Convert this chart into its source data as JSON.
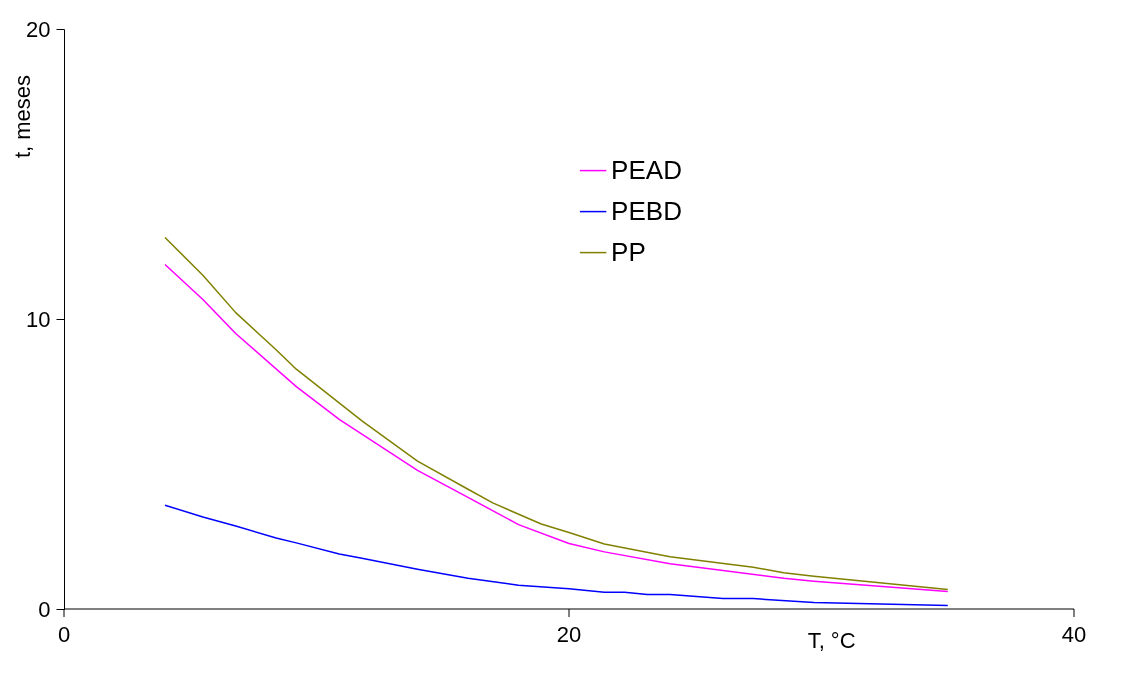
{
  "chart_data": {
    "type": "line",
    "xlabel": "T, °C",
    "ylabel": "t, meses",
    "xlim": [
      0,
      40
    ],
    "xticks": [
      0,
      20,
      40
    ],
    "ylim": [
      0,
      20
    ],
    "yticks": [
      0,
      10,
      20
    ],
    "grid": false,
    "legend": "top",
    "line_style": "solid",
    "marker": "none",
    "series": [
      {
        "name": "PEAD",
        "color": "#ff00ff",
        "x": [
          4.0,
          5.5,
          6.8,
          9.2,
          10.9,
          14.0,
          16.0,
          18.0,
          20.0,
          21.4,
          24.0,
          28.5,
          29.7,
          35.0
        ],
        "values": [
          11.88,
          10.67,
          9.5,
          7.67,
          6.54,
          4.78,
          3.85,
          2.91,
          2.26,
          1.97,
          1.56,
          1.06,
          0.96,
          0.6
        ]
      },
      {
        "name": "PEBD",
        "color": "#0000ff",
        "x": [
          4.0,
          5.5,
          6.8,
          8.4,
          9.2,
          10.9,
          11.8,
          14.0,
          16.0,
          18.0,
          20.0,
          21.4,
          22.2,
          23.1,
          24.0,
          26.1,
          27.3,
          29.7,
          35.0
        ],
        "values": [
          3.58,
          3.17,
          2.86,
          2.45,
          2.28,
          1.9,
          1.75,
          1.37,
          1.06,
          0.82,
          0.7,
          0.58,
          0.58,
          0.5,
          0.5,
          0.36,
          0.36,
          0.22,
          0.12
        ]
      },
      {
        "name": "PP",
        "color": "#808000",
        "x": [
          4.0,
          5.5,
          6.8,
          8.4,
          9.2,
          11.8,
          14.0,
          16.0,
          17.0,
          18.9,
          20.0,
          21.4,
          24.0,
          27.3,
          28.5,
          29.7,
          35.0
        ],
        "values": [
          12.81,
          11.51,
          10.22,
          8.94,
          8.27,
          6.49,
          5.1,
          4.13,
          3.65,
          2.93,
          2.64,
          2.24,
          1.8,
          1.44,
          1.25,
          1.13,
          0.67
        ]
      }
    ]
  }
}
